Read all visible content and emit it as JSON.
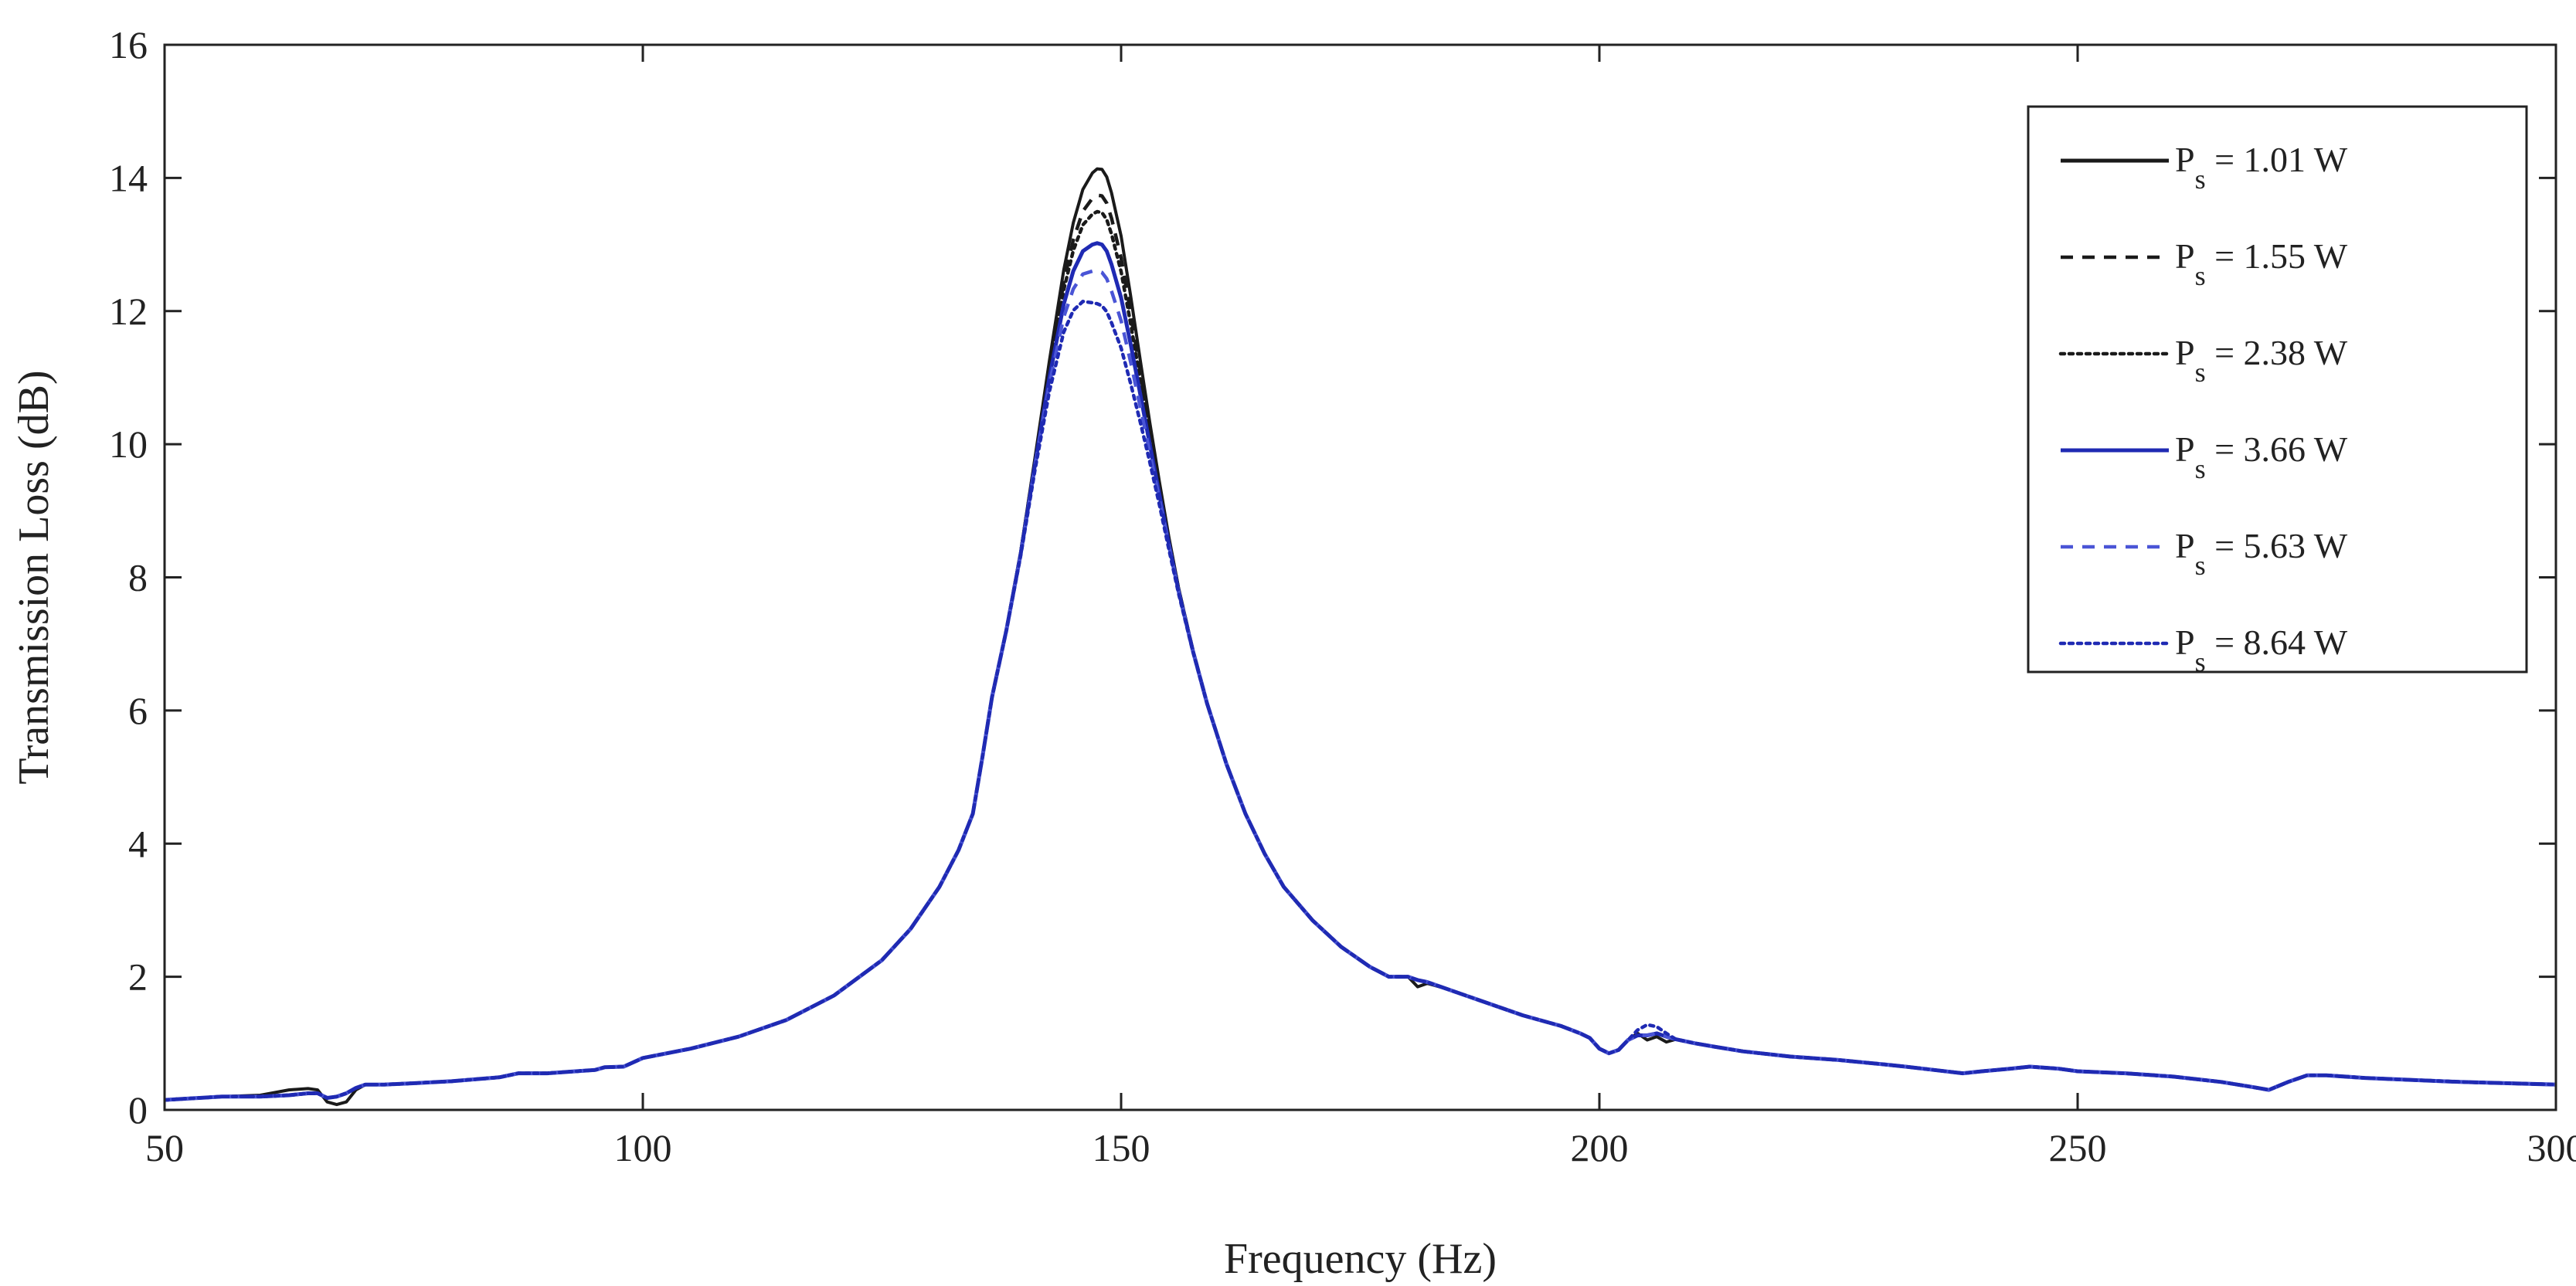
{
  "chart_data": {
    "type": "line",
    "title": "",
    "xlabel": "Frequency (Hz)",
    "ylabel": "Transmission Loss (dB)",
    "xlim": [
      50,
      300
    ],
    "ylim": [
      0,
      16
    ],
    "xticks": [
      50,
      100,
      150,
      200,
      250,
      300
    ],
    "yticks": [
      0,
      2,
      4,
      6,
      8,
      10,
      12,
      14,
      16
    ],
    "xtick_labels": [
      "50",
      "100",
      "150",
      "200",
      "250",
      "300"
    ],
    "ytick_labels": [
      "0",
      "2",
      "4",
      "6",
      "8",
      "10",
      "12",
      "14",
      "16"
    ],
    "grid": false,
    "legend_position": "top-right",
    "legend_prefix": "P",
    "legend_subscript": "s",
    "base_x": [
      50,
      56,
      60,
      63,
      65,
      66,
      67,
      68,
      69,
      70,
      71,
      73,
      76,
      80,
      85,
      87,
      90,
      93,
      95,
      96,
      98,
      100,
      105,
      110,
      115,
      120,
      125,
      128,
      131,
      133,
      134.5,
      135.5,
      136.5,
      138,
      139.5,
      141,
      142.5,
      144,
      145,
      146,
      147,
      147.5,
      148,
      148.5,
      149,
      150,
      151,
      152,
      153,
      154,
      155,
      156,
      157.5,
      159,
      161,
      163,
      165,
      167,
      170,
      173,
      176,
      178,
      180,
      181,
      182,
      184,
      186,
      188,
      190,
      192,
      194,
      196,
      198,
      199,
      200,
      201,
      202,
      203,
      204,
      205,
      206,
      207,
      208,
      210,
      212,
      215,
      220,
      225,
      230,
      232,
      235,
      238,
      240,
      243,
      245,
      248,
      250,
      255,
      260,
      265,
      268,
      270,
      272,
      274,
      276,
      280,
      285,
      290,
      295,
      300
    ],
    "base_y": [
      0.15,
      0.2,
      0.2,
      0.22,
      0.25,
      0.25,
      0.18,
      0.2,
      0.25,
      0.33,
      0.38,
      0.38,
      0.4,
      0.43,
      0.49,
      0.55,
      0.55,
      0.58,
      0.6,
      0.64,
      0.65,
      0.78,
      0.92,
      1.1,
      1.35,
      1.72,
      2.25,
      2.72,
      3.35,
      3.9,
      4.45,
      5.3,
      6.2,
      7.2,
      8.35,
      9.7,
      11.0,
      12.1,
      12.6,
      12.9,
      13.0,
      13.02,
      13.0,
      12.9,
      12.7,
      12.2,
      11.5,
      10.75,
      10.0,
      9.25,
      8.5,
      7.8,
      6.9,
      6.1,
      5.2,
      4.45,
      3.85,
      3.35,
      2.85,
      2.45,
      2.15,
      2.0,
      2.0,
      1.95,
      1.92,
      1.82,
      1.72,
      1.62,
      1.52,
      1.42,
      1.34,
      1.26,
      1.15,
      1.08,
      0.92,
      0.85,
      0.9,
      1.05,
      1.12,
      1.12,
      1.15,
      1.1,
      1.06,
      1.0,
      0.95,
      0.88,
      0.8,
      0.75,
      0.68,
      0.65,
      0.6,
      0.55,
      0.58,
      0.62,
      0.65,
      0.62,
      0.58,
      0.55,
      0.5,
      0.42,
      0.35,
      0.3,
      0.42,
      0.52,
      0.52,
      0.48,
      0.45,
      0.42,
      0.4,
      0.38
    ],
    "series": [
      {
        "name": "= 1.01 W",
        "color": "#1a1a1a",
        "dash": "solid",
        "peak": 14.15,
        "overrides": [
          [
            60,
            0.22
          ],
          [
            63,
            0.3
          ],
          [
            65,
            0.32
          ],
          [
            66,
            0.3
          ],
          [
            67,
            0.12
          ],
          [
            68,
            0.08
          ],
          [
            69,
            0.12
          ],
          [
            70,
            0.3
          ],
          [
            180,
            2.0
          ],
          [
            181,
            1.85
          ],
          [
            182,
            1.9
          ],
          [
            204,
            1.15
          ],
          [
            205,
            1.05
          ],
          [
            206,
            1.1
          ],
          [
            207,
            1.02
          ]
        ]
      },
      {
        "name": "= 1.55 W",
        "color": "#1a1a1a",
        "dash": "dashed",
        "peak": 13.75,
        "overrides": []
      },
      {
        "name": "= 2.38 W",
        "color": "#1a1a1a",
        "dash": "dotted",
        "peak": 13.5,
        "overrides": []
      },
      {
        "name": "= 3.66 W",
        "color": "#1f2ab3",
        "dash": "solid",
        "peak": 13.02,
        "overrides": []
      },
      {
        "name": "= 5.63 W",
        "color": "#4a55d6",
        "dash": "dashed",
        "peak": 12.6,
        "overrides": []
      },
      {
        "name": "= 8.64 W",
        "color": "#1f2ab3",
        "dash": "dotted",
        "peak": 12.1,
        "overrides": [
          [
            204,
            1.2
          ],
          [
            205,
            1.28
          ],
          [
            206,
            1.25
          ],
          [
            207,
            1.15
          ]
        ]
      }
    ]
  }
}
